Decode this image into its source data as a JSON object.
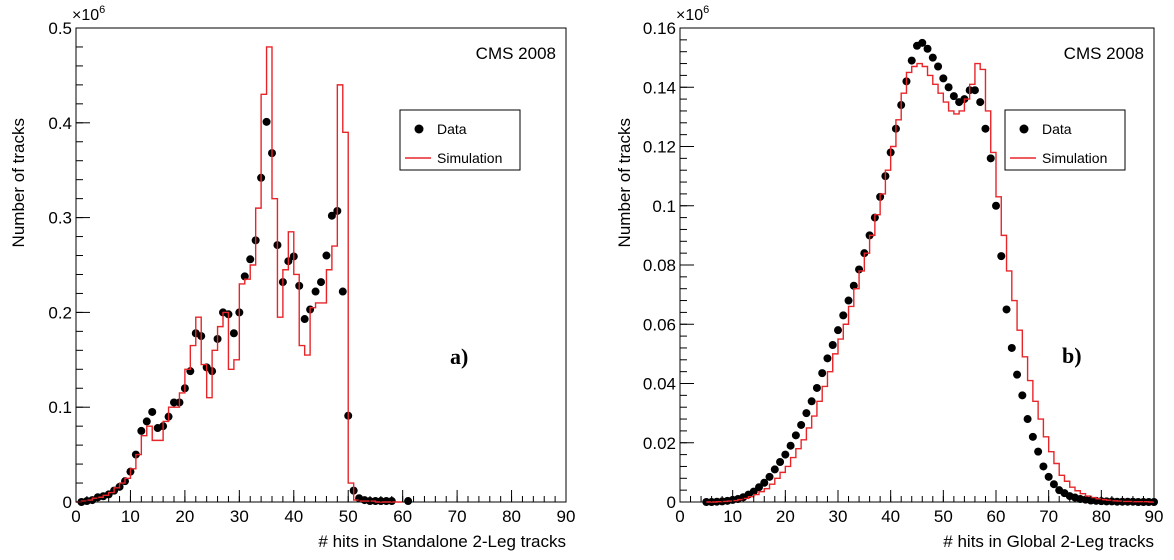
{
  "chart_data": [
    {
      "type": "scatter",
      "panel_label": "a)",
      "annotation": "CMS 2008",
      "exponent_base": "×10",
      "exponent_power": "6",
      "xlabel": "# hits in  Standalone 2-Leg  tracks",
      "ylabel": "Number of tracks",
      "xlim": [
        0,
        90
      ],
      "ylim": [
        0,
        0.5
      ],
      "xticks": [
        "0",
        "10",
        "20",
        "30",
        "40",
        "50",
        "60",
        "70",
        "80",
        "90"
      ],
      "yticks": [
        "0",
        "0.1",
        "0.2",
        "0.3",
        "0.4",
        "0.5"
      ],
      "legend": {
        "placement": "upper-right",
        "entries": [
          "Data",
          "Simulation"
        ]
      },
      "colors": {
        "data": "#000000",
        "simulation": "#e8262a"
      },
      "series": [
        {
          "name": "Data",
          "kind": "points",
          "x": [
            1,
            2,
            3,
            4,
            5,
            6,
            7,
            8,
            9,
            10,
            11,
            12,
            13,
            14,
            15,
            16,
            17,
            18,
            19,
            20,
            21,
            22,
            23,
            24,
            25,
            26,
            27,
            28,
            29,
            30,
            31,
            32,
            33,
            34,
            35,
            36,
            37,
            38,
            39,
            40,
            41,
            42,
            43,
            44,
            45,
            46,
            47,
            48,
            49,
            50,
            51,
            52,
            53,
            54,
            55,
            56,
            57,
            58,
            61
          ],
          "y": [
            0,
            0.001,
            0.002,
            0.005,
            0.006,
            0.008,
            0.012,
            0.016,
            0.022,
            0.032,
            0.05,
            0.075,
            0.085,
            0.095,
            0.078,
            0.08,
            0.09,
            0.105,
            0.105,
            0.12,
            0.138,
            0.178,
            0.175,
            0.142,
            0.138,
            0.172,
            0.2,
            0.198,
            0.178,
            0.2,
            0.238,
            0.256,
            0.276,
            0.342,
            0.401,
            0.368,
            0.271,
            0.232,
            0.254,
            0.259,
            0.228,
            0.193,
            0.203,
            0.222,
            0.232,
            0.26,
            0.302,
            0.307,
            0.222,
            0.091,
            0.012,
            0.004,
            0.002,
            0.001,
            0.001,
            0.001,
            0.001,
            0.001,
            0.001
          ]
        },
        {
          "name": "Simulation",
          "kind": "histogram",
          "edges": [
            0,
            1,
            2,
            3,
            4,
            5,
            6,
            7,
            8,
            9,
            10,
            11,
            12,
            13,
            14,
            15,
            16,
            17,
            18,
            19,
            20,
            21,
            22,
            23,
            24,
            25,
            26,
            27,
            28,
            29,
            30,
            31,
            32,
            33,
            34,
            35,
            36,
            37,
            38,
            39,
            40,
            41,
            42,
            43,
            44,
            45,
            46,
            47,
            48,
            49,
            50,
            51,
            52,
            53,
            54,
            55,
            56,
            57,
            58,
            59,
            60
          ],
          "values": [
            0,
            0.001,
            0.002,
            0.004,
            0.005,
            0.007,
            0.01,
            0.015,
            0.02,
            0.025,
            0.035,
            0.05,
            0.07,
            0.08,
            0.065,
            0.065,
            0.085,
            0.1,
            0.1,
            0.115,
            0.14,
            0.165,
            0.195,
            0.145,
            0.11,
            0.16,
            0.185,
            0.2,
            0.14,
            0.15,
            0.23,
            0.235,
            0.25,
            0.31,
            0.43,
            0.48,
            0.32,
            0.195,
            0.245,
            0.285,
            0.24,
            0.165,
            0.155,
            0.205,
            0.21,
            0.21,
            0.245,
            0.27,
            0.44,
            0.39,
            0.02,
            0.002,
            0.001,
            0.001,
            0.001,
            0,
            0,
            0,
            0,
            0
          ]
        }
      ]
    },
    {
      "type": "scatter",
      "panel_label": "b)",
      "annotation": "CMS 2008",
      "exponent_base": "×10",
      "exponent_power": "6",
      "xlabel": "# hits in  Global 2-Leg  tracks",
      "ylabel": "Number of tracks",
      "xlim": [
        0,
        90
      ],
      "ylim": [
        0,
        0.16
      ],
      "xticks": [
        "0",
        "10",
        "20",
        "30",
        "40",
        "50",
        "60",
        "70",
        "80",
        "90"
      ],
      "yticks": [
        "0",
        "0.02",
        "0.04",
        "0.06",
        "0.08",
        "0.1",
        "0.12",
        "0.14",
        "0.16"
      ],
      "legend": {
        "placement": "upper-right",
        "entries": [
          "Data",
          "Simulation"
        ]
      },
      "colors": {
        "data": "#000000",
        "simulation": "#e8262a"
      },
      "series": [
        {
          "name": "Data",
          "kind": "points",
          "x": [
            5,
            6,
            7,
            8,
            9,
            10,
            11,
            12,
            13,
            14,
            15,
            16,
            17,
            18,
            19,
            20,
            21,
            22,
            23,
            24,
            25,
            26,
            27,
            28,
            29,
            30,
            31,
            32,
            33,
            34,
            35,
            36,
            37,
            38,
            39,
            40,
            41,
            42,
            43,
            44,
            45,
            46,
            47,
            48,
            49,
            50,
            51,
            52,
            53,
            54,
            55,
            56,
            57,
            58,
            59,
            60,
            61,
            62,
            63,
            64,
            65,
            66,
            67,
            68,
            69,
            70,
            71,
            72,
            73,
            74,
            75,
            76,
            77,
            78,
            79,
            80,
            81,
            82,
            83,
            84,
            85,
            86,
            87,
            88,
            89,
            90
          ],
          "y": [
            0,
            0,
            0.0001,
            0.0002,
            0.0004,
            0.0007,
            0.001,
            0.0016,
            0.0025,
            0.0035,
            0.005,
            0.0065,
            0.0085,
            0.011,
            0.0135,
            0.016,
            0.019,
            0.0225,
            0.026,
            0.03,
            0.034,
            0.0385,
            0.0435,
            0.0485,
            0.053,
            0.058,
            0.063,
            0.068,
            0.073,
            0.0785,
            0.084,
            0.09,
            0.096,
            0.103,
            0.11,
            0.118,
            0.126,
            0.134,
            0.142,
            0.149,
            0.154,
            0.155,
            0.153,
            0.15,
            0.147,
            0.143,
            0.14,
            0.137,
            0.135,
            0.136,
            0.139,
            0.139,
            0.135,
            0.126,
            0.116,
            0.1,
            0.083,
            0.065,
            0.052,
            0.043,
            0.036,
            0.028,
            0.022,
            0.017,
            0.012,
            0.0085,
            0.006,
            0.004,
            0.003,
            0.002,
            0.0015,
            0.001,
            0.0008,
            0.0005,
            0.0004,
            0.0003,
            0.0002,
            0.0002,
            0.0001,
            0.0001,
            0.0001,
            0.0001,
            0,
            0,
            0,
            0
          ]
        },
        {
          "name": "Simulation",
          "kind": "histogram",
          "edges": [
            5,
            6,
            7,
            8,
            9,
            10,
            11,
            12,
            13,
            14,
            15,
            16,
            17,
            18,
            19,
            20,
            21,
            22,
            23,
            24,
            25,
            26,
            27,
            28,
            29,
            30,
            31,
            32,
            33,
            34,
            35,
            36,
            37,
            38,
            39,
            40,
            41,
            42,
            43,
            44,
            45,
            46,
            47,
            48,
            49,
            50,
            51,
            52,
            53,
            54,
            55,
            56,
            57,
            58,
            59,
            60,
            61,
            62,
            63,
            64,
            65,
            66,
            67,
            68,
            69,
            70,
            71,
            72,
            73,
            74,
            75,
            76,
            77,
            78,
            79,
            80,
            81,
            82,
            83,
            84,
            85,
            86,
            87,
            88,
            89,
            90
          ],
          "values": [
            0,
            0,
            0.0001,
            0.0002,
            0.0003,
            0.0005,
            0.0008,
            0.0012,
            0.0018,
            0.0025,
            0.0035,
            0.0045,
            0.006,
            0.008,
            0.01,
            0.012,
            0.015,
            0.018,
            0.021,
            0.025,
            0.029,
            0.034,
            0.039,
            0.044,
            0.05,
            0.055,
            0.06,
            0.066,
            0.072,
            0.078,
            0.084,
            0.09,
            0.097,
            0.104,
            0.112,
            0.12,
            0.129,
            0.138,
            0.145,
            0.147,
            0.148,
            0.147,
            0.144,
            0.141,
            0.138,
            0.135,
            0.132,
            0.131,
            0.132,
            0.136,
            0.141,
            0.148,
            0.146,
            0.132,
            0.118,
            0.103,
            0.09,
            0.078,
            0.068,
            0.058,
            0.049,
            0.041,
            0.034,
            0.028,
            0.022,
            0.017,
            0.013,
            0.009,
            0.007,
            0.005,
            0.0038,
            0.0028,
            0.002,
            0.0015,
            0.0011,
            0.0008,
            0.0006,
            0.0004,
            0.0003,
            0.0002,
            0.0002,
            0.0001,
            0.0001,
            0.0001,
            0
          ]
        }
      ]
    }
  ]
}
